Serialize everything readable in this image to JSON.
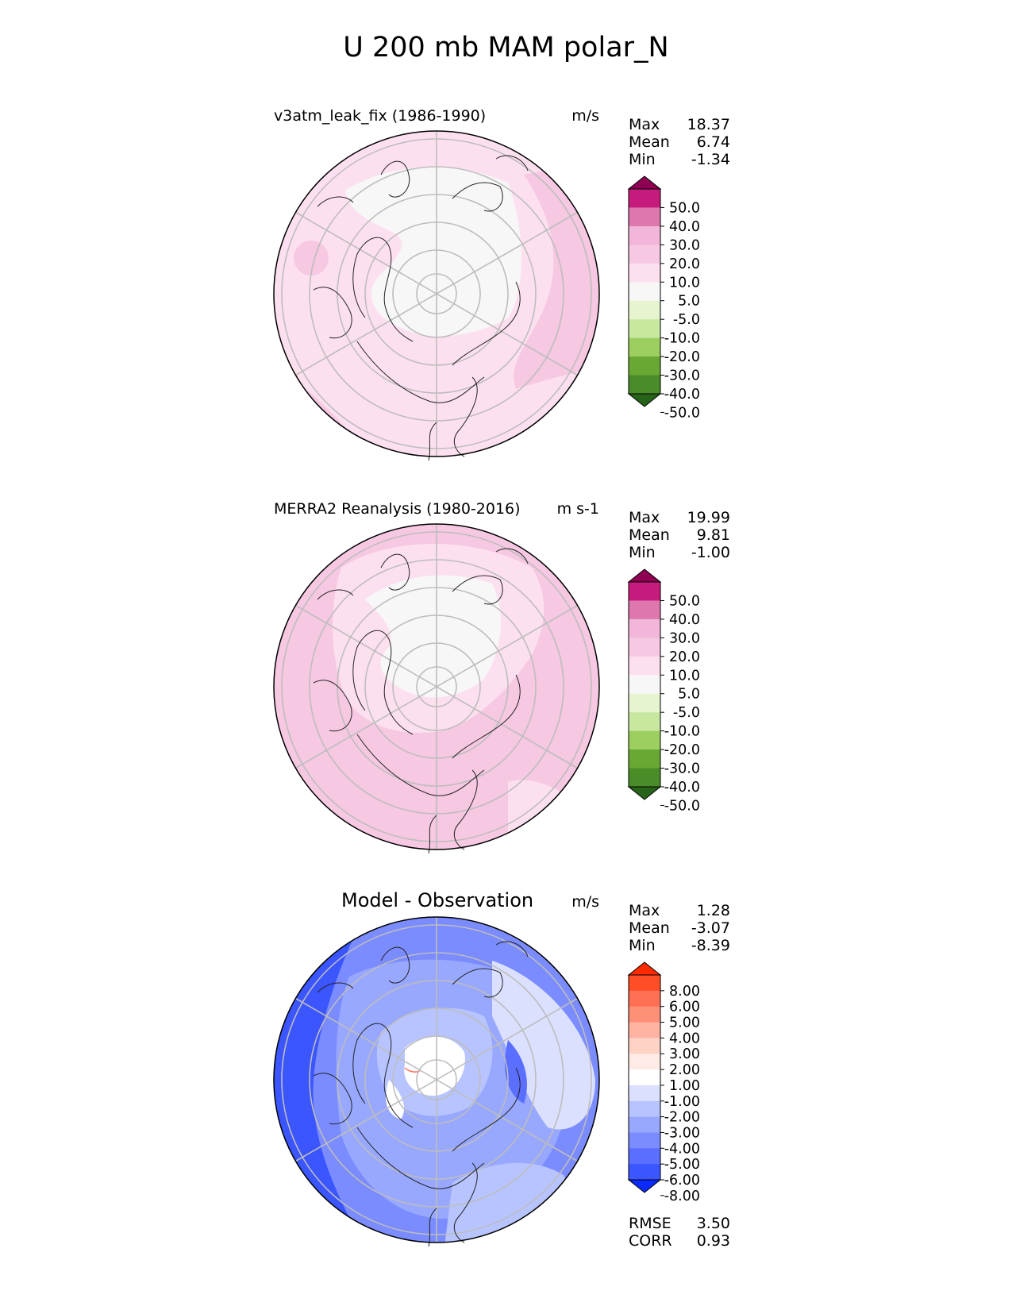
{
  "title": "U 200 mb MAM polar_N",
  "panels": [
    {
      "id": "test",
      "subtitle": "v3atm_leak_fix (1986-1990)",
      "units": "m/s",
      "stats": [
        {
          "label": "Max",
          "value": "18.37"
        },
        {
          "label": "Mean",
          "value": "6.74"
        },
        {
          "label": "Min",
          "value": "-1.34"
        }
      ]
    },
    {
      "id": "ref",
      "subtitle": "MERRA2 Reanalysis (1980-2016)",
      "units": "m s-1",
      "stats": [
        {
          "label": "Max",
          "value": "19.99"
        },
        {
          "label": "Mean",
          "value": "9.81"
        },
        {
          "label": "Min",
          "value": "-1.00"
        }
      ]
    },
    {
      "id": "diff",
      "subtitle": "Model - Observation",
      "units": "m/s",
      "stats": [
        {
          "label": "Max",
          "value": "1.28"
        },
        {
          "label": "Mean",
          "value": "-3.07"
        },
        {
          "label": "Min",
          "value": "-8.39"
        }
      ],
      "metrics": [
        {
          "label": "RMSE",
          "value": "3.50"
        },
        {
          "label": "CORR",
          "value": "0.93"
        }
      ]
    }
  ],
  "colorbars": {
    "field": {
      "labels": [
        "50.0",
        "40.0",
        "30.0",
        "20.0",
        "10.0",
        "5.0",
        "-5.0",
        "-10.0",
        "-20.0",
        "-30.0",
        "-40.0",
        "-50.0"
      ],
      "colors": [
        "#8e0152",
        "#c51b7d",
        "#de77ae",
        "#f1b6da",
        "#f6c8e2",
        "#fde0ef",
        "#f7f7f7",
        "#e6f5d0",
        "#c8e8a0",
        "#9ccf60",
        "#6aa834",
        "#4a8c28",
        "#276419"
      ]
    },
    "diff": {
      "labels": [
        "8.00",
        "6.00",
        "5.00",
        "4.00",
        "3.00",
        "2.00",
        "1.00",
        "-1.00",
        "-2.00",
        "-3.00",
        "-4.00",
        "-5.00",
        "-6.00",
        "-8.00"
      ],
      "colors": [
        "#ff2a00",
        "#ff4d26",
        "#ff7055",
        "#ff9078",
        "#ffb3a0",
        "#ffd2c6",
        "#ffebe5",
        "#ffffff",
        "#dbe0ff",
        "#b8c4ff",
        "#98a8ff",
        "#7a8cff",
        "#5a6fff",
        "#3b55ff",
        "#0a2aff"
      ]
    }
  }
}
